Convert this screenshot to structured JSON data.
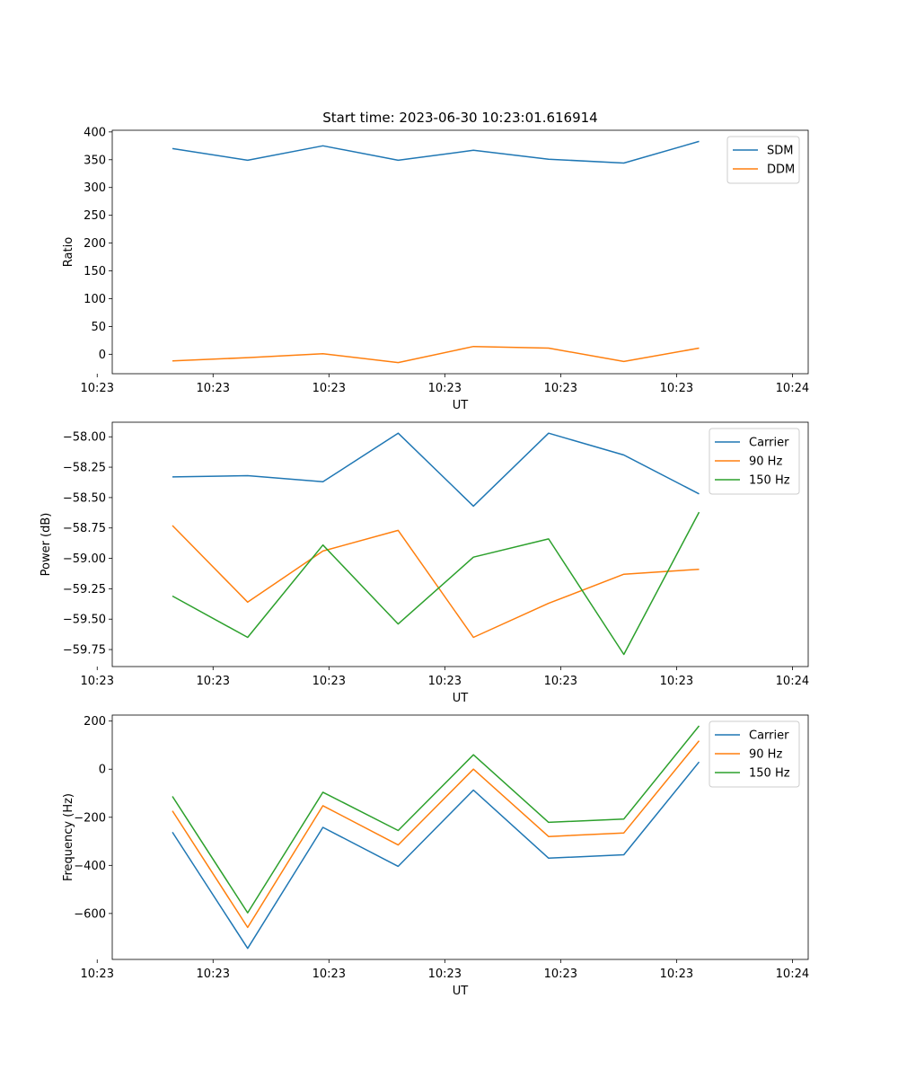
{
  "figure": {
    "title": "Start time: 2023-06-30 10:23:01.616914",
    "background": "#ffffff",
    "series_colors": {
      "blue": "#1f77b4",
      "orange": "#ff7f0e",
      "green": "#2ca02c"
    }
  },
  "chart_data": [
    {
      "type": "line",
      "xlabel": "UT",
      "ylabel": "Ratio",
      "x": [
        1,
        2,
        3,
        4,
        5,
        6,
        7,
        8
      ],
      "xlim": [
        0.2,
        9.45
      ],
      "x_ticks": [
        {
          "value": 0,
          "label": "10:23"
        },
        {
          "value": 1.54,
          "label": "10:23"
        },
        {
          "value": 3.08,
          "label": "10:23"
        },
        {
          "value": 4.62,
          "label": "10:23"
        },
        {
          "value": 6.16,
          "label": "10:23"
        },
        {
          "value": 7.7,
          "label": "10:23"
        },
        {
          "value": 9.24,
          "label": "10:24"
        }
      ],
      "ylim": [
        -35,
        403
      ],
      "y_ticks": [
        {
          "value": 400,
          "label": "400"
        },
        {
          "value": 350,
          "label": "350"
        },
        {
          "value": 300,
          "label": "300"
        },
        {
          "value": 250,
          "label": "250"
        },
        {
          "value": 200,
          "label": "200"
        },
        {
          "value": 150,
          "label": "150"
        },
        {
          "value": 100,
          "label": "100"
        },
        {
          "value": 50,
          "label": "50"
        },
        {
          "value": 0,
          "label": "0"
        }
      ],
      "legend": "top-right",
      "grid": false,
      "series": [
        {
          "name": "SDM",
          "color": "#1f77b4",
          "values": [
            370,
            349,
            375,
            349,
            367,
            351,
            344,
            383
          ]
        },
        {
          "name": "DDM",
          "color": "#ff7f0e",
          "values": [
            -12,
            -6,
            1,
            -15,
            14,
            11,
            -13,
            11
          ]
        }
      ]
    },
    {
      "type": "line",
      "xlabel": "UT",
      "ylabel": "Power (dB)",
      "x": [
        1,
        2,
        3,
        4,
        5,
        6,
        7,
        8
      ],
      "xlim": [
        0.2,
        9.45
      ],
      "x_ticks": [
        {
          "value": 0,
          "label": "10:23"
        },
        {
          "value": 1.54,
          "label": "10:23"
        },
        {
          "value": 3.08,
          "label": "10:23"
        },
        {
          "value": 4.62,
          "label": "10:23"
        },
        {
          "value": 6.16,
          "label": "10:23"
        },
        {
          "value": 7.7,
          "label": "10:23"
        },
        {
          "value": 9.24,
          "label": "10:24"
        }
      ],
      "ylim": [
        -59.89,
        -57.88
      ],
      "y_ticks": [
        {
          "value": -58.0,
          "label": "−58.00"
        },
        {
          "value": -58.25,
          "label": "−58.25"
        },
        {
          "value": -58.5,
          "label": "−58.50"
        },
        {
          "value": -58.75,
          "label": "−58.75"
        },
        {
          "value": -59.0,
          "label": "−59.00"
        },
        {
          "value": -59.25,
          "label": "−59.25"
        },
        {
          "value": -59.5,
          "label": "−59.50"
        },
        {
          "value": -59.75,
          "label": "−59.75"
        }
      ],
      "legend": "top-right",
      "grid": false,
      "series": [
        {
          "name": "Carrier",
          "color": "#1f77b4",
          "values": [
            -58.33,
            -58.32,
            -58.37,
            -57.97,
            -58.57,
            -57.97,
            -58.15,
            -58.47
          ]
        },
        {
          "name": "90 Hz",
          "color": "#ff7f0e",
          "values": [
            -58.73,
            -59.36,
            -58.94,
            -58.77,
            -59.65,
            -59.37,
            -59.13,
            -59.09
          ]
        },
        {
          "name": "150 Hz",
          "color": "#2ca02c",
          "values": [
            -59.31,
            -59.65,
            -58.89,
            -59.54,
            -58.99,
            -58.84,
            -59.79,
            -58.62
          ]
        }
      ]
    },
    {
      "type": "line",
      "xlabel": "UT",
      "ylabel": "Frequency (Hz)",
      "x": [
        1,
        2,
        3,
        4,
        5,
        6,
        7,
        8
      ],
      "xlim": [
        0.2,
        9.45
      ],
      "x_ticks": [
        {
          "value": 0,
          "label": "10:23"
        },
        {
          "value": 1.54,
          "label": "10:23"
        },
        {
          "value": 3.08,
          "label": "10:23"
        },
        {
          "value": 4.62,
          "label": "10:23"
        },
        {
          "value": 6.16,
          "label": "10:23"
        },
        {
          "value": 7.7,
          "label": "10:23"
        },
        {
          "value": 9.24,
          "label": "10:24"
        }
      ],
      "ylim": [
        -791,
        225
      ],
      "y_ticks": [
        {
          "value": 200,
          "label": "200"
        },
        {
          "value": 0,
          "label": "0"
        },
        {
          "value": -200,
          "label": "−200"
        },
        {
          "value": -400,
          "label": "−400"
        },
        {
          "value": -600,
          "label": "−600"
        }
      ],
      "legend": "top-right",
      "grid": false,
      "series": [
        {
          "name": "Carrier",
          "color": "#1f77b4",
          "values": [
            -262,
            -745,
            -242,
            -404,
            -87,
            -370,
            -356,
            30
          ]
        },
        {
          "name": "90 Hz",
          "color": "#ff7f0e",
          "values": [
            -173,
            -658,
            -152,
            -315,
            0,
            -280,
            -265,
            118
          ]
        },
        {
          "name": "150 Hz",
          "color": "#2ca02c",
          "values": [
            -113,
            -597,
            -96,
            -255,
            60,
            -221,
            -207,
            180
          ]
        }
      ]
    }
  ]
}
